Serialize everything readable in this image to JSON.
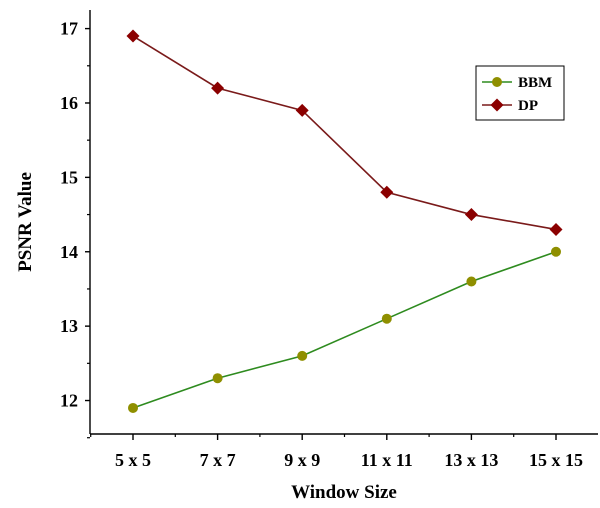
{
  "chart_data": {
    "type": "line",
    "title": "",
    "xlabel": "Window Size",
    "ylabel": "PSNR Value",
    "categories": [
      "5 x 5",
      "7 x 7",
      "9 x 9",
      "11 x 11",
      "13 x 13",
      "15 x 15"
    ],
    "ylim": [
      11.55,
      17.25
    ],
    "yticks": [
      12,
      13,
      14,
      15,
      16,
      17
    ],
    "grid": false,
    "legend_position": "top-right",
    "series": [
      {
        "name": "BBM",
        "values": [
          11.9,
          12.3,
          12.6,
          13.1,
          13.6,
          14.0
        ],
        "color": "#2e8b1f",
        "marker": "circle",
        "marker_color": "#8f8f00"
      },
      {
        "name": "DP",
        "values": [
          16.9,
          16.2,
          15.9,
          14.8,
          14.5,
          14.3
        ],
        "color": "#7a1a1a",
        "marker": "diamond",
        "marker_color": "#8b0000"
      }
    ]
  }
}
